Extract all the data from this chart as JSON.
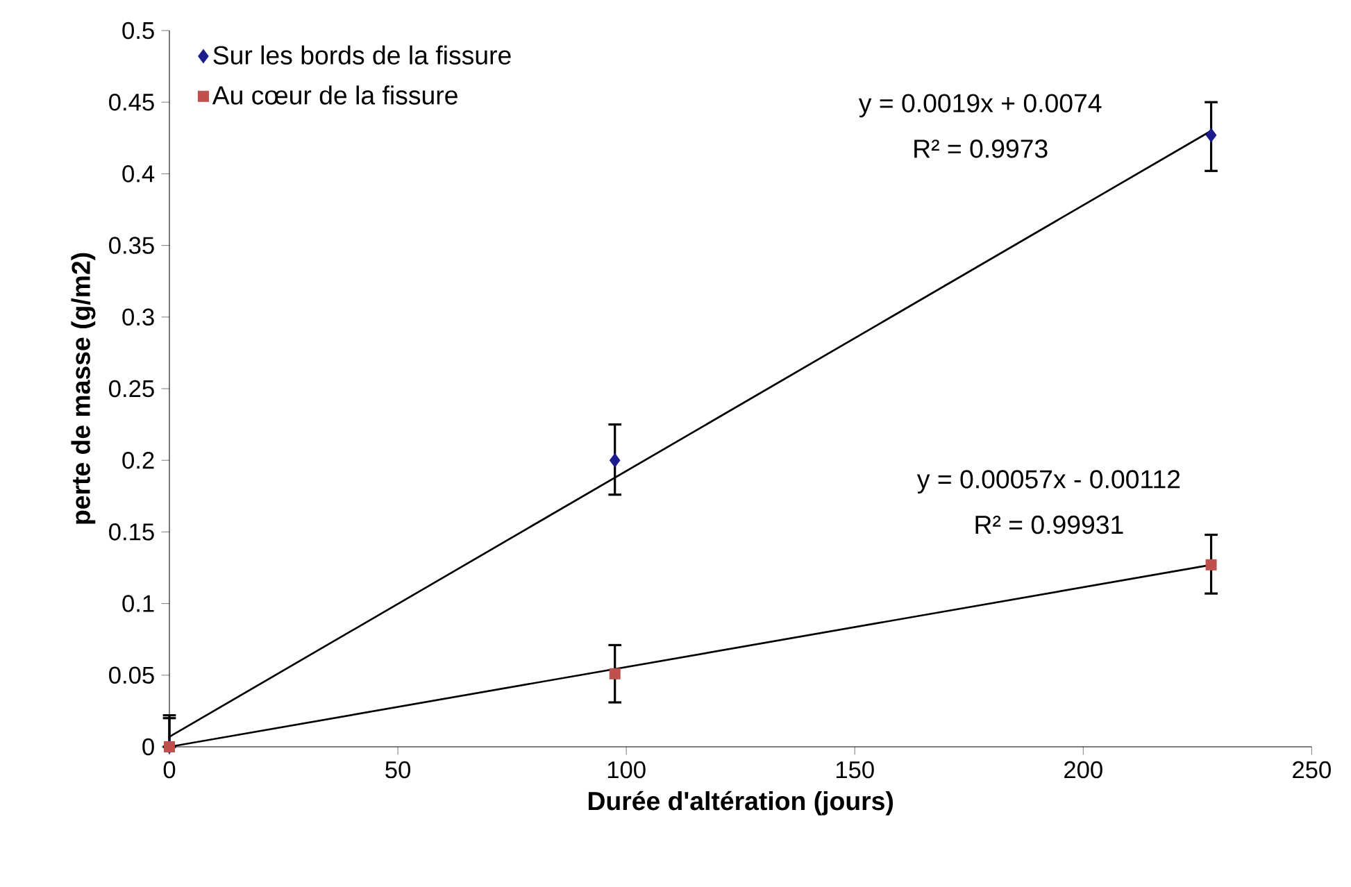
{
  "chart_data": {
    "type": "scatter",
    "xlabel": "Durée d'altération (jours)",
    "ylabel": "perte de masse (g/m2)",
    "xlim": [
      0,
      250
    ],
    "xticks": [
      0,
      50,
      100,
      150,
      200,
      250
    ],
    "ylim": [
      0,
      0.5
    ],
    "yticks": [
      0,
      0.05,
      0.1,
      0.15,
      0.2,
      0.25,
      0.3,
      0.35,
      0.4,
      0.45,
      0.5
    ],
    "grid": false,
    "legend": "top left",
    "series": [
      {
        "name": "Sur les bords de la fissure",
        "color": "#1c1c8c",
        "marker": "diamond",
        "x": [
          0,
          97.5,
          228
        ],
        "values": [
          0,
          0.2,
          0.427
        ],
        "errors": [
          [
            0,
            0.022
          ],
          [
            0.176,
            0.225
          ],
          [
            0.402,
            0.45
          ]
        ]
      },
      {
        "name": "Au cœur de la fissure",
        "color": "#c0504d",
        "marker": "square",
        "x": [
          0,
          97.5,
          228
        ],
        "values": [
          0,
          0.051,
          0.127
        ],
        "errors": [
          [
            0,
            0.02
          ],
          [
            0.031,
            0.071
          ],
          [
            0.107,
            0.148
          ]
        ]
      },
      {
        "type": "line",
        "color": "#000000",
        "x": [
          0,
          228
        ],
        "values": [
          0.007,
          0.43
        ]
      },
      {
        "type": "line",
        "color": "#000000",
        "x": [
          0,
          228
        ],
        "values": [
          0,
          0.127
        ]
      }
    ],
    "annotations": [
      "y = 0.0019x + 0.0074",
      "R² = 0.9973",
      "y = 0.00057x - 0.00112",
      "R² = 0.99931"
    ]
  }
}
